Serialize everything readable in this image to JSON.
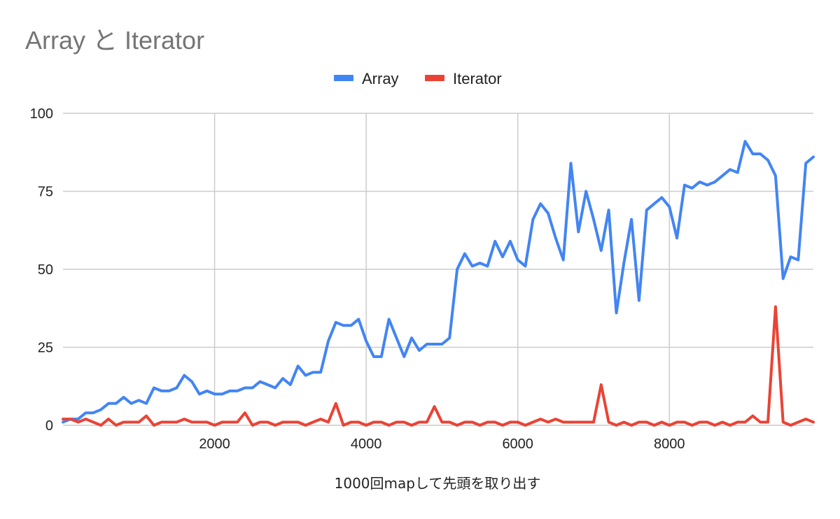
{
  "chart_data": {
    "type": "line",
    "title": "Array と Iterator",
    "xlabel": "1000回mapして先頭を取り出す",
    "ylabel": "",
    "xlim": [
      0,
      9900
    ],
    "ylim": [
      0,
      100
    ],
    "x_ticks": [
      2000,
      4000,
      6000,
      8000
    ],
    "y_ticks": [
      0,
      25,
      50,
      75,
      100
    ],
    "x_tick_labels": [
      "2000",
      "4000",
      "6000",
      "8000"
    ],
    "y_tick_labels": [
      "0",
      "25",
      "50",
      "75",
      "100"
    ],
    "grid": true,
    "legend_position": "top",
    "x": [
      0,
      100,
      200,
      300,
      400,
      500,
      600,
      700,
      800,
      900,
      1000,
      1100,
      1200,
      1300,
      1400,
      1500,
      1600,
      1700,
      1800,
      1900,
      2000,
      2100,
      2200,
      2300,
      2400,
      2500,
      2600,
      2700,
      2800,
      2900,
      3000,
      3100,
      3200,
      3300,
      3400,
      3500,
      3600,
      3700,
      3800,
      3900,
      4000,
      4100,
      4200,
      4300,
      4400,
      4500,
      4600,
      4700,
      4800,
      4900,
      5000,
      5100,
      5200,
      5300,
      5400,
      5500,
      5600,
      5700,
      5800,
      5900,
      6000,
      6100,
      6200,
      6300,
      6400,
      6500,
      6600,
      6700,
      6800,
      6900,
      7000,
      7100,
      7200,
      7300,
      7400,
      7500,
      7600,
      7700,
      7800,
      7900,
      8000,
      8100,
      8200,
      8300,
      8400,
      8500,
      8600,
      8700,
      8800,
      8900,
      9000,
      9100,
      9200,
      9300,
      9400,
      9500,
      9600,
      9700,
      9800,
      9900
    ],
    "series": [
      {
        "name": "Array",
        "color": "#4285f4",
        "values": [
          1,
          2,
          2,
          4,
          4,
          5,
          7,
          7,
          9,
          7,
          8,
          7,
          12,
          11,
          11,
          12,
          16,
          14,
          10,
          11,
          10,
          10,
          11,
          11,
          12,
          12,
          14,
          13,
          12,
          15,
          13,
          19,
          16,
          17,
          17,
          27,
          33,
          32,
          32,
          34,
          27,
          22,
          22,
          34,
          28,
          22,
          28,
          24,
          26,
          26,
          26,
          28,
          50,
          55,
          51,
          52,
          51,
          59,
          54,
          59,
          53,
          51,
          66,
          71,
          68,
          60,
          53,
          84,
          62,
          75,
          66,
          56,
          69,
          36,
          52,
          66,
          40,
          69,
          71,
          73,
          70,
          60,
          77,
          76,
          78,
          77,
          78,
          80,
          82,
          81,
          91,
          87,
          87,
          85,
          80,
          47,
          54,
          53,
          84,
          86
        ]
      },
      {
        "name": "Iterator",
        "color": "#ea4335",
        "values": [
          2,
          2,
          1,
          2,
          1,
          0,
          2,
          0,
          1,
          1,
          1,
          3,
          0,
          1,
          1,
          1,
          2,
          1,
          1,
          1,
          0,
          1,
          1,
          1,
          4,
          0,
          1,
          1,
          0,
          1,
          1,
          1,
          0,
          1,
          2,
          1,
          7,
          0,
          1,
          1,
          0,
          1,
          1,
          0,
          1,
          1,
          0,
          1,
          1,
          6,
          1,
          1,
          0,
          1,
          1,
          0,
          1,
          1,
          0,
          1,
          1,
          0,
          1,
          2,
          1,
          2,
          1,
          1,
          1,
          1,
          1,
          13,
          1,
          0,
          1,
          0,
          1,
          1,
          0,
          1,
          0,
          1,
          1,
          0,
          1,
          1,
          0,
          1,
          0,
          1,
          1,
          3,
          1,
          1,
          38,
          1,
          0,
          1,
          2,
          1
        ]
      }
    ]
  }
}
